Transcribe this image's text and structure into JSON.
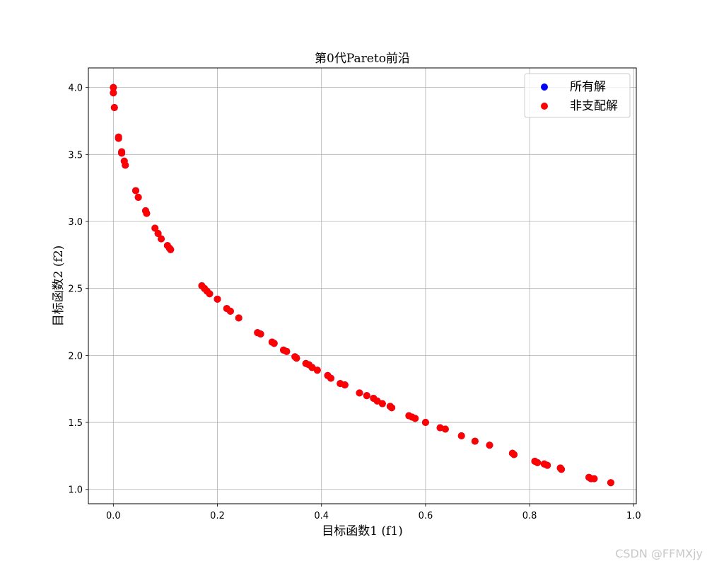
{
  "chart_data": {
    "type": "scatter",
    "title": "第0代Pareto前沿",
    "xlabel": "目标函数1 (f1)",
    "ylabel": "目标函数2 (f2)",
    "xlim": [
      -0.048,
      1.005
    ],
    "ylim": [
      0.893,
      4.146
    ],
    "x_ticks": [
      "0.0",
      "0.2",
      "0.4",
      "0.6",
      "0.8",
      "1.0"
    ],
    "y_ticks": [
      "1.0",
      "1.5",
      "2.0",
      "2.5",
      "3.0",
      "3.5",
      "4.0"
    ],
    "grid": true,
    "legend_position": "top-right",
    "series": [
      {
        "name": "所有解",
        "color": "#0000ff",
        "x": [
          0.0,
          0.0,
          0.002,
          0.01,
          0.01,
          0.016,
          0.016,
          0.021,
          0.023,
          0.043,
          0.048,
          0.062,
          0.064,
          0.08,
          0.086,
          0.092,
          0.104,
          0.108,
          0.11,
          0.17,
          0.175,
          0.18,
          0.185,
          0.2,
          0.218,
          0.225,
          0.241,
          0.277,
          0.283,
          0.305,
          0.309,
          0.327,
          0.333,
          0.349,
          0.352,
          0.37,
          0.376,
          0.382,
          0.392,
          0.412,
          0.418,
          0.436,
          0.445,
          0.473,
          0.487,
          0.5,
          0.507,
          0.517,
          0.532,
          0.535,
          0.568,
          0.574,
          0.58,
          0.6,
          0.628,
          0.638,
          0.669,
          0.695,
          0.723,
          0.767,
          0.77,
          0.81,
          0.815,
          0.828,
          0.834,
          0.859,
          0.861,
          0.914,
          0.918,
          0.924,
          0.956
        ],
        "y": [
          4.0,
          3.96,
          3.85,
          3.63,
          3.62,
          3.52,
          3.51,
          3.45,
          3.42,
          3.23,
          3.18,
          3.08,
          3.06,
          2.95,
          2.91,
          2.87,
          2.82,
          2.8,
          2.79,
          2.52,
          2.5,
          2.48,
          2.46,
          2.42,
          2.35,
          2.33,
          2.28,
          2.17,
          2.16,
          2.1,
          2.09,
          2.04,
          2.03,
          1.99,
          1.98,
          1.94,
          1.93,
          1.91,
          1.89,
          1.85,
          1.83,
          1.79,
          1.78,
          1.72,
          1.7,
          1.68,
          1.66,
          1.64,
          1.62,
          1.61,
          1.55,
          1.54,
          1.53,
          1.5,
          1.46,
          1.45,
          1.4,
          1.36,
          1.33,
          1.27,
          1.26,
          1.21,
          1.2,
          1.19,
          1.18,
          1.16,
          1.15,
          1.09,
          1.08,
          1.08,
          1.05
        ]
      },
      {
        "name": "非支配解",
        "color": "#ff0000",
        "x": [
          0.0,
          0.0,
          0.002,
          0.01,
          0.01,
          0.016,
          0.016,
          0.021,
          0.023,
          0.043,
          0.048,
          0.062,
          0.064,
          0.08,
          0.086,
          0.092,
          0.104,
          0.108,
          0.11,
          0.17,
          0.175,
          0.18,
          0.185,
          0.2,
          0.218,
          0.225,
          0.241,
          0.277,
          0.283,
          0.305,
          0.309,
          0.327,
          0.333,
          0.349,
          0.352,
          0.37,
          0.376,
          0.382,
          0.392,
          0.412,
          0.418,
          0.436,
          0.445,
          0.473,
          0.487,
          0.5,
          0.507,
          0.517,
          0.532,
          0.535,
          0.568,
          0.574,
          0.58,
          0.6,
          0.628,
          0.638,
          0.669,
          0.695,
          0.723,
          0.767,
          0.77,
          0.81,
          0.815,
          0.828,
          0.834,
          0.859,
          0.861,
          0.914,
          0.918,
          0.924,
          0.956
        ],
        "y": [
          4.0,
          3.96,
          3.85,
          3.63,
          3.62,
          3.52,
          3.51,
          3.45,
          3.42,
          3.23,
          3.18,
          3.08,
          3.06,
          2.95,
          2.91,
          2.87,
          2.82,
          2.8,
          2.79,
          2.52,
          2.5,
          2.48,
          2.46,
          2.42,
          2.35,
          2.33,
          2.28,
          2.17,
          2.16,
          2.1,
          2.09,
          2.04,
          2.03,
          1.99,
          1.98,
          1.94,
          1.93,
          1.91,
          1.89,
          1.85,
          1.83,
          1.79,
          1.78,
          1.72,
          1.7,
          1.68,
          1.66,
          1.64,
          1.62,
          1.61,
          1.55,
          1.54,
          1.53,
          1.5,
          1.46,
          1.45,
          1.4,
          1.36,
          1.33,
          1.27,
          1.26,
          1.21,
          1.2,
          1.19,
          1.18,
          1.16,
          1.15,
          1.09,
          1.08,
          1.08,
          1.05
        ]
      }
    ]
  },
  "watermark": "CSDN @FFMXjy"
}
